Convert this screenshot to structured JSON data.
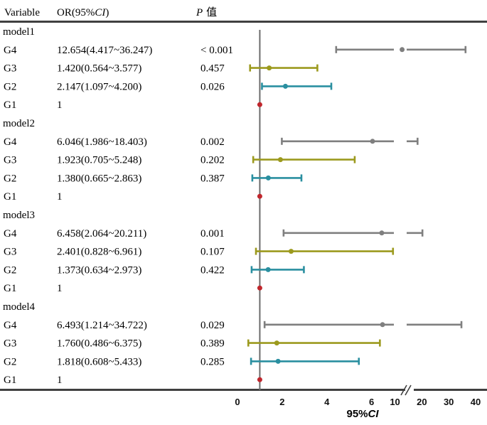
{
  "chart_data": {
    "type": "forest",
    "headers": {
      "variable": "Variable",
      "or_prefix": "OR(95%",
      "or_ci": "CI",
      "or_suffix": ")",
      "p_letter": "P",
      "p_word": "值"
    },
    "xlabel_prefix": "95%",
    "xlabel_ci": "CI",
    "reference_value": 1,
    "axis_left": {
      "range": [
        0,
        7
      ],
      "ticks": [
        "0",
        "2",
        "4",
        "6"
      ]
    },
    "axis_right": {
      "range": [
        8,
        40
      ],
      "ticks": [
        "10",
        "20",
        "30",
        "40"
      ]
    },
    "colors": {
      "G4": "#7f7f7f",
      "G3": "#9c9a1e",
      "G2": "#2a8fa0",
      "G1": "#c0262c",
      "rule": "#404040"
    },
    "models": [
      {
        "name": "model1",
        "rows": [
          {
            "group": "G4",
            "or_text": "12.654(4.417~36.247)",
            "p": "< 0.001",
            "or": 12.654,
            "lo": 4.417,
            "hi": 36.247
          },
          {
            "group": "G3",
            "or_text": "1.420(0.564~3.577)",
            "p": "0.457",
            "or": 1.42,
            "lo": 0.564,
            "hi": 3.577
          },
          {
            "group": "G2",
            "or_text": "2.147(1.097~4.200)",
            "p": "0.026",
            "or": 2.147,
            "lo": 1.097,
            "hi": 4.2
          },
          {
            "group": "G1",
            "or_text": "1",
            "p": "",
            "or": 1,
            "lo": 1,
            "hi": 1
          }
        ]
      },
      {
        "name": "model2",
        "rows": [
          {
            "group": "G4",
            "or_text": "6.046(1.986~18.403)",
            "p": "0.002",
            "or": 6.046,
            "lo": 1.986,
            "hi": 18.403
          },
          {
            "group": "G3",
            "or_text": "1.923(0.705~5.248)",
            "p": "0.202",
            "or": 1.923,
            "lo": 0.705,
            "hi": 5.248
          },
          {
            "group": "G2",
            "or_text": "1.380(0.665~2.863)",
            "p": "0.387",
            "or": 1.38,
            "lo": 0.665,
            "hi": 2.863
          },
          {
            "group": "G1",
            "or_text": "1",
            "p": "",
            "or": 1,
            "lo": 1,
            "hi": 1
          }
        ]
      },
      {
        "name": "model3",
        "rows": [
          {
            "group": "G4",
            "or_text": "6.458(2.064~20.211)",
            "p": "0.001",
            "or": 6.458,
            "lo": 2.064,
            "hi": 20.211
          },
          {
            "group": "G3",
            "or_text": "2.401(0.828~6.961)",
            "p": "0.107",
            "or": 2.401,
            "lo": 0.828,
            "hi": 6.961
          },
          {
            "group": "G2",
            "or_text": "1.373(0.634~2.973)",
            "p": "0.422",
            "or": 1.373,
            "lo": 0.634,
            "hi": 2.973
          },
          {
            "group": "G1",
            "or_text": "1",
            "p": "",
            "or": 1,
            "lo": 1,
            "hi": 1
          }
        ]
      },
      {
        "name": "model4",
        "rows": [
          {
            "group": "G4",
            "or_text": "6.493(1.214~34.722)",
            "p": "0.029",
            "or": 6.493,
            "lo": 1.214,
            "hi": 34.722
          },
          {
            "group": "G3",
            "or_text": "1.760(0.486~6.375)",
            "p": "0.389",
            "or": 1.76,
            "lo": 0.486,
            "hi": 6.375
          },
          {
            "group": "G2",
            "or_text": "1.818(0.608~5.433)",
            "p": "0.285",
            "or": 1.818,
            "lo": 0.608,
            "hi": 5.433
          },
          {
            "group": "G1",
            "or_text": "1",
            "p": "",
            "or": 1,
            "lo": 1,
            "hi": 1
          }
        ]
      }
    ]
  }
}
